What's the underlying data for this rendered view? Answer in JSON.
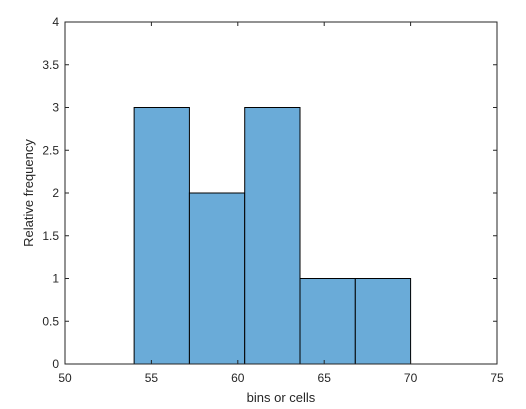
{
  "chart_data": {
    "type": "bar",
    "subtype": "histogram",
    "xlabel": "bins or cells",
    "ylabel": "Relative frequency",
    "xlim": [
      50,
      75
    ],
    "ylim": [
      0,
      4
    ],
    "x_ticks": [
      "50",
      "55",
      "60",
      "65",
      "70",
      "75"
    ],
    "y_ticks": [
      "0",
      "0.5",
      "1",
      "1.5",
      "2",
      "2.5",
      "3",
      "3.5",
      "4"
    ],
    "bins": [
      {
        "start": 54,
        "end": 57.2,
        "value": 3
      },
      {
        "start": 57.2,
        "end": 60.4,
        "value": 2
      },
      {
        "start": 60.4,
        "end": 63.6,
        "value": 3
      },
      {
        "start": 63.6,
        "end": 66.8,
        "value": 1
      },
      {
        "start": 66.8,
        "end": 70,
        "value": 1
      }
    ],
    "bar_color": "#6AABD8",
    "edge_color": "#000000",
    "grid": false
  }
}
